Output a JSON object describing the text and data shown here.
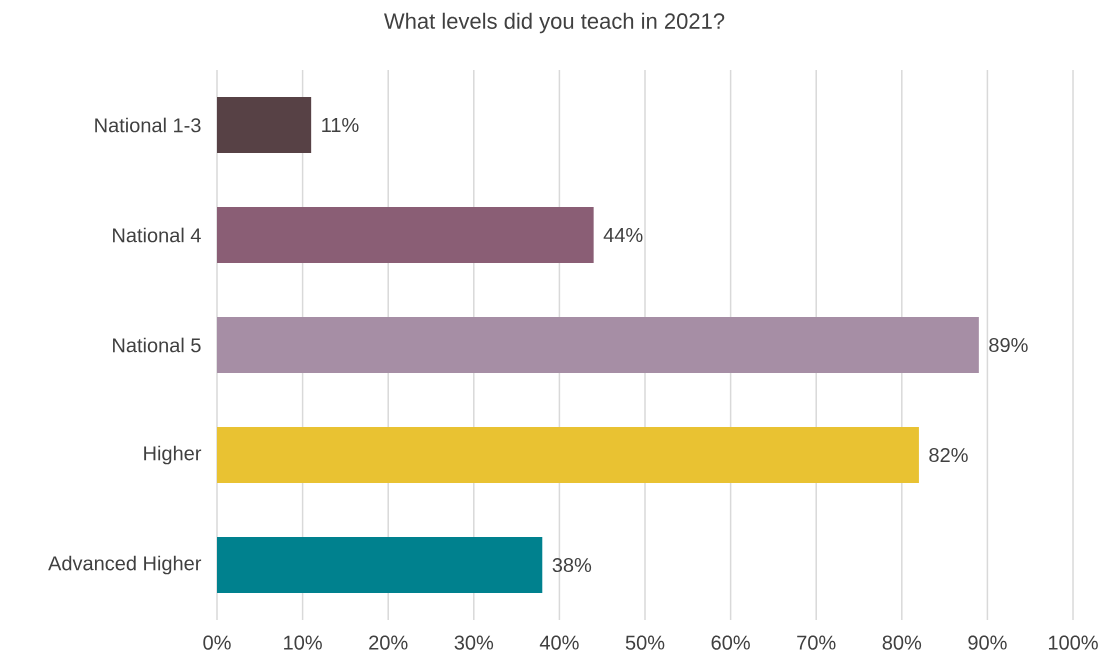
{
  "chart_data": {
    "type": "bar",
    "orientation": "horizontal",
    "title": "What levels did you teach in 2021?",
    "categories": [
      "National 1-3",
      "National 4",
      "National 5",
      "Higher",
      "Advanced Higher"
    ],
    "values": [
      11,
      44,
      89,
      82,
      38
    ],
    "colors": [
      "#574145",
      "#8a5e75",
      "#a68ea5",
      "#e9c232",
      "#00818e"
    ],
    "value_labels": [
      "11%",
      "44%",
      "89%",
      "82%",
      "38%"
    ],
    "xlim": [
      0,
      100
    ],
    "xticks": [
      {
        "value": 0,
        "label": "0%"
      },
      {
        "value": 10,
        "label": "10%"
      },
      {
        "value": 20,
        "label": "20%"
      },
      {
        "value": 30,
        "label": "30%"
      },
      {
        "value": 40,
        "label": "40%"
      },
      {
        "value": 50,
        "label": "50%"
      },
      {
        "value": 60,
        "label": "60%"
      },
      {
        "value": 70,
        "label": "70%"
      },
      {
        "value": 80,
        "label": "80%"
      },
      {
        "value": 90,
        "label": "90%"
      },
      {
        "value": 100,
        "label": "100%"
      }
    ],
    "grid": "x"
  }
}
